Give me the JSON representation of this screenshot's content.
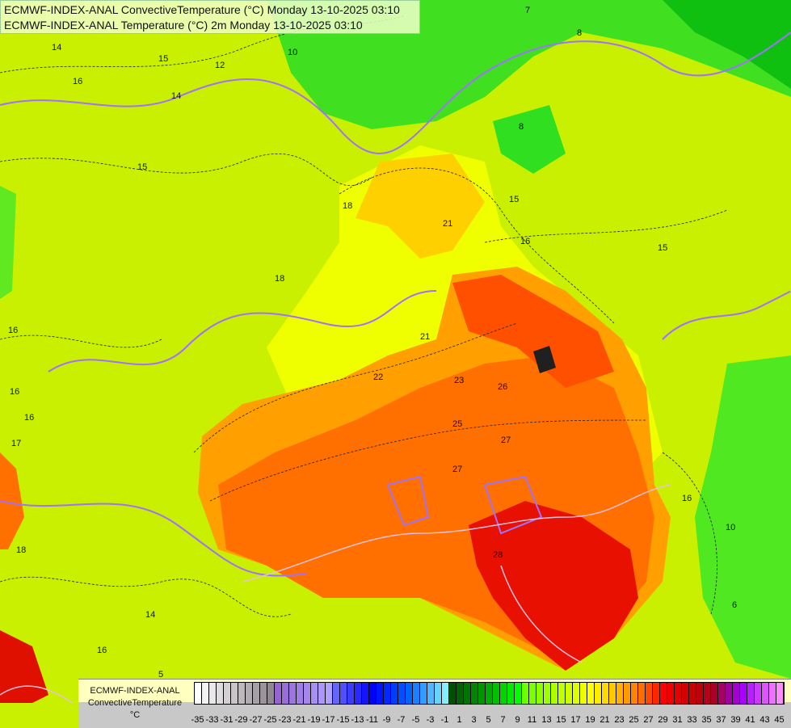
{
  "header": {
    "line1": "ECMWF-INDEX-ANAL ConvectiveTemperature (°C) Monday 13-10-2025 03:10",
    "line2": "ECMWF-INDEX-ANAL Temperature (°C) 2m Monday 13-10-2025 03:10"
  },
  "legend": {
    "model": "ECMWF-INDEX-ANAL",
    "parameter": "ConvectiveTemperature",
    "unit": "°C",
    "min": -35,
    "max": 45,
    "step": 1,
    "tick_labels": [
      "-35",
      "-33",
      "-31",
      "-29",
      "-27",
      "-25",
      "-23",
      "-21",
      "-19",
      "-17",
      "-15",
      "-13",
      "-11",
      "-9",
      "-7",
      "-5",
      "-3",
      "-1",
      "1",
      "3",
      "5",
      "7",
      "9",
      "11",
      "13",
      "15",
      "17",
      "19",
      "21",
      "23",
      "25",
      "27",
      "29",
      "31",
      "33",
      "35",
      "37",
      "39",
      "41",
      "43",
      "45"
    ]
  },
  "contour_labels": [
    "14",
    "16",
    "15",
    "12",
    "14",
    "15",
    "10",
    "7",
    "8",
    "8",
    "18",
    "21",
    "15",
    "16",
    "15",
    "16",
    "16",
    "18",
    "21",
    "22",
    "23",
    "26",
    "25",
    "27",
    "27",
    "28",
    "16",
    "17",
    "18",
    "16",
    "14",
    "5",
    "10",
    "6",
    "16"
  ],
  "colors": {
    "background": "#c8f000",
    "warm_core": "#ff6000",
    "hot": "#e00000",
    "cool": "#30e020",
    "isotherm": "#a070ff"
  }
}
